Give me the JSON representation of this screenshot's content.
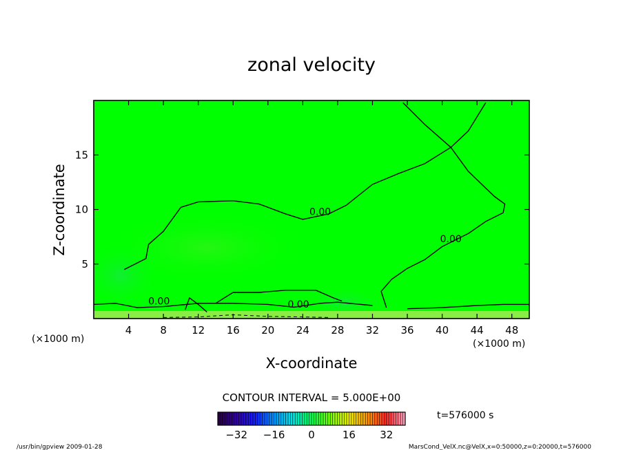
{
  "chart_data": {
    "type": "heatmap",
    "title": "zonal velocity",
    "xlabel": "X-coordinate",
    "ylabel": "Z-coordinate",
    "x_unit_label": "(×1000 m)",
    "y_unit_label": "(×1000 m)",
    "xlim": [
      0,
      50
    ],
    "ylim": [
      0,
      20
    ],
    "x_ticks": [
      4,
      8,
      12,
      16,
      20,
      24,
      28,
      32,
      36,
      40,
      44,
      48
    ],
    "y_ticks": [
      5,
      10,
      15
    ],
    "contour_interval_label": "CONTOUR INTERVAL = 5.000E+00",
    "contour_labels": [
      {
        "text": "0.00",
        "x": 26,
        "y": 9.5
      },
      {
        "text": "0.00",
        "x": 41,
        "y": 7.0
      },
      {
        "text": "0.00",
        "x": 7.5,
        "y": 1.3
      },
      {
        "text": "0.00",
        "x": 23.5,
        "y": 1.0
      }
    ],
    "zero_contour_lines": [
      [
        [
          10,
          10.2
        ],
        [
          12,
          10.7
        ],
        [
          16,
          10.8
        ],
        [
          19,
          10.5
        ],
        [
          22,
          9.6
        ],
        [
          24,
          9.1
        ],
        [
          27,
          9.6
        ],
        [
          29,
          10.4
        ],
        [
          32,
          12.3
        ],
        [
          35,
          13.3
        ],
        [
          38,
          14.2
        ],
        [
          41,
          15.7
        ],
        [
          43,
          13.5
        ],
        [
          46,
          11.2
        ],
        [
          47.2,
          10.5
        ],
        [
          47,
          9.7
        ],
        [
          45,
          8.9
        ],
        [
          43,
          7.8
        ],
        [
          40,
          6.6
        ],
        [
          38,
          5.4
        ],
        [
          36,
          4.6
        ],
        [
          34.2,
          3.6
        ],
        [
          33,
          2.5
        ],
        [
          33.6,
          1.0
        ]
      ],
      [
        [
          3.5,
          4.5
        ],
        [
          6,
          5.5
        ],
        [
          6.3,
          6.8
        ],
        [
          8,
          8.0
        ],
        [
          10,
          10.2
        ]
      ],
      [
        [
          0,
          1.3
        ],
        [
          2.5,
          1.4
        ],
        [
          5,
          1.0
        ],
        [
          8,
          1.1
        ],
        [
          12,
          1.4
        ],
        [
          16,
          1.4
        ],
        [
          20,
          1.3
        ],
        [
          23,
          1.05
        ],
        [
          26,
          1.4
        ],
        [
          28,
          1.5
        ],
        [
          32,
          1.2
        ]
      ],
      [
        [
          36,
          0.9
        ],
        [
          40,
          1.0
        ],
        [
          44,
          1.2
        ],
        [
          47,
          1.3
        ],
        [
          50,
          1.3
        ]
      ],
      [
        [
          35.5,
          19.8
        ],
        [
          38,
          17.8
        ],
        [
          41,
          15.7
        ],
        [
          43,
          17.2
        ],
        [
          45,
          19.8
        ]
      ],
      [
        [
          10.5,
          0.8
        ],
        [
          11,
          1.9
        ],
        [
          12,
          1.3
        ],
        [
          13,
          0.6
        ]
      ],
      [
        [
          14,
          1.4
        ],
        [
          16,
          2.4
        ],
        [
          19,
          2.4
        ],
        [
          22,
          2.6
        ],
        [
          25.5,
          2.6
        ],
        [
          27.5,
          1.9
        ],
        [
          28.5,
          1.6
        ]
      ]
    ],
    "negative_contour_lines": [
      [
        [
          8,
          0.1
        ],
        [
          12,
          0.15
        ],
        [
          16,
          0.35
        ],
        [
          20,
          0.2
        ],
        [
          24,
          0.15
        ],
        [
          27,
          0.1
        ]
      ]
    ],
    "colorbar": {
      "ticks": [
        -32,
        -16,
        0,
        16,
        32
      ],
      "range": [
        -40,
        40
      ]
    }
  },
  "time_label": "t=576000 s",
  "footer_left": "/usr/bin/gpview   2009-01-28",
  "footer_right": "MarsCond_VelX.nc@VelX,x=0:50000,z=0:20000,t=576000",
  "colors": {
    "field": "#00ff00",
    "field_warm": "#33ee33",
    "field_cool": "#22e45c",
    "surface_band": "#88ee44",
    "contour": "#000000"
  }
}
